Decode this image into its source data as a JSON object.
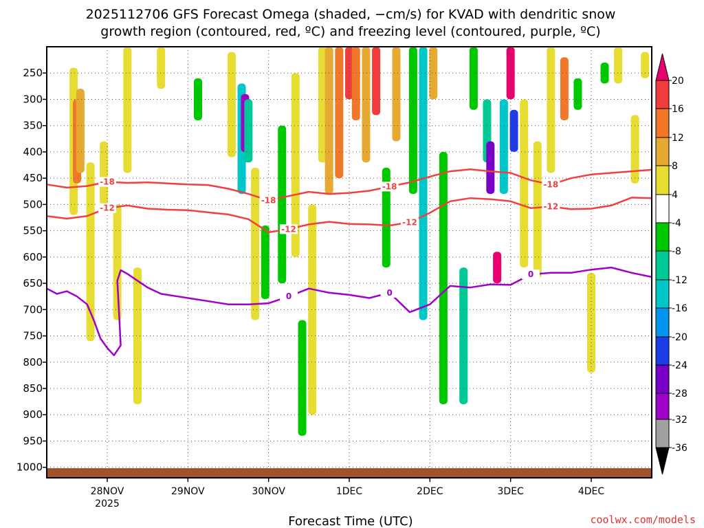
{
  "chart_data": {
    "type": "heatmap",
    "title_lines": [
      "2025112706 GFS Forecast Omega (shaded, −cm/s) for KVAD with dendritic snow",
      "growth region (contoured, red, ºC) and freezing level (contoured, purple, ºC)"
    ],
    "xlabel": "Forecast Time (UTC)",
    "credit": "coolwx.com/models",
    "x_ticks": [
      {
        "label": "28NOV",
        "sub": "2025",
        "hours": 24
      },
      {
        "label": "29NOV",
        "sub": "",
        "hours": 48
      },
      {
        "label": "30NOV",
        "sub": "",
        "hours": 72
      },
      {
        "label": "1DEC",
        "sub": "",
        "hours": 96
      },
      {
        "label": "2DEC",
        "sub": "",
        "hours": 120
      },
      {
        "label": "3DEC",
        "sub": "",
        "hours": 144
      },
      {
        "label": "4DEC",
        "sub": "",
        "hours": 168
      }
    ],
    "xlim_hours": [
      6,
      186
    ],
    "y_ticks": [
      {
        "label": "250",
        "p": 250
      },
      {
        "label": "300",
        "p": 300
      },
      {
        "label": "350",
        "p": 350
      },
      {
        "label": "400",
        "p": 400
      },
      {
        "label": "450",
        "p": 450
      },
      {
        "label": "500",
        "p": 500
      },
      {
        "label": "550",
        "p": 550
      },
      {
        "label": "600",
        "p": 600
      },
      {
        "label": "650",
        "p": 650
      },
      {
        "label": "700",
        "p": 700
      },
      {
        "label": "750",
        "p": 750
      },
      {
        "label": "800",
        "p": 800
      },
      {
        "label": "850",
        "p": 850
      },
      {
        "label": "900",
        "p": 900
      },
      {
        "label": "950",
        "p": 950
      },
      {
        "label": "1000",
        "p": 1000
      }
    ],
    "ylim_hPa": [
      200,
      1020
    ],
    "colorbar": {
      "labels": [
        "20",
        "16",
        "12",
        "8",
        "4",
        "-4",
        "-8",
        "-12",
        "-16",
        "-20",
        "-24",
        "-28",
        "-32",
        "-36"
      ],
      "colors": [
        "#e8006f",
        "#f03c3c",
        "#f07828",
        "#e6aa32",
        "#e6dc32",
        "#ffffff",
        "#00c800",
        "#00c896",
        "#00c8c8",
        "#0096f0",
        "#1e3ce6",
        "#7800c8",
        "#a000c8",
        "#a0a0a0",
        "#000000"
      ]
    },
    "colors": {
      "dgz_contour": "#f04040",
      "freezing_contour": "#a000c8",
      "terrain": "#a0522d"
    },
    "contour_labels": {
      "dgz_upper": "-18",
      "dgz_lower": "-12",
      "freezing": "0"
    },
    "series": [
      {
        "name": "-18C isotherm",
        "hours": [
          6,
          12,
          18,
          24,
          30,
          36,
          42,
          48,
          54,
          60,
          66,
          72,
          78,
          84,
          90,
          96,
          102,
          108,
          114,
          120,
          126,
          132,
          138,
          144,
          150,
          156,
          162,
          168,
          174,
          180,
          186
        ],
        "pressure": [
          462,
          468,
          465,
          457,
          459,
          458,
          460,
          462,
          463,
          470,
          480,
          492,
          484,
          476,
          480,
          478,
          474,
          466,
          458,
          447,
          437,
          433,
          437,
          440,
          454,
          462,
          450,
          443,
          440,
          437,
          434
        ]
      },
      {
        "name": "-12C isotherm",
        "hours": [
          6,
          12,
          18,
          24,
          30,
          36,
          42,
          48,
          54,
          60,
          66,
          72,
          78,
          84,
          90,
          96,
          102,
          108,
          114,
          120,
          126,
          132,
          138,
          144,
          150,
          156,
          162,
          168,
          174,
          180,
          186
        ],
        "pressure": [
          522,
          527,
          522,
          507,
          502,
          508,
          510,
          511,
          515,
          519,
          528,
          553,
          547,
          538,
          533,
          537,
          538,
          540,
          534,
          516,
          494,
          488,
          490,
          494,
          507,
          504,
          509,
          508,
          502,
          487,
          488
        ]
      },
      {
        "name": "0C freezing level",
        "hours": [
          6,
          9,
          12,
          15,
          18,
          20,
          22,
          24,
          26,
          28,
          27,
          28,
          30,
          33,
          36,
          40,
          45,
          50,
          55,
          60,
          66,
          72,
          78,
          84,
          90,
          96,
          102,
          108,
          114,
          120,
          126,
          132,
          138,
          144,
          150,
          156,
          162,
          168,
          174,
          180,
          186
        ],
        "pressure": [
          660,
          670,
          665,
          675,
          690,
          720,
          755,
          773,
          787,
          768,
          645,
          625,
          632,
          645,
          658,
          670,
          675,
          680,
          685,
          690,
          690,
          688,
          675,
          660,
          668,
          672,
          678,
          668,
          705,
          690,
          655,
          658,
          652,
          653,
          633,
          630,
          630,
          624,
          620,
          630,
          638
        ]
      }
    ],
    "omega_cells": [
      {
        "h": 14,
        "p1": 240,
        "p2": 520,
        "v": 6
      },
      {
        "h": 15,
        "p1": 300,
        "p2": 460,
        "v": 12
      },
      {
        "h": 16,
        "p1": 280,
        "p2": 440,
        "v": 8
      },
      {
        "h": 19,
        "p1": 420,
        "p2": 760,
        "v": 5
      },
      {
        "h": 23,
        "p1": 380,
        "p2": 500,
        "v": 6
      },
      {
        "h": 27,
        "p1": 500,
        "p2": 720,
        "v": 5
      },
      {
        "h": 30,
        "p1": 200,
        "p2": 440,
        "v": 5
      },
      {
        "h": 33,
        "p1": 620,
        "p2": 880,
        "v": 5
      },
      {
        "h": 40,
        "p1": 200,
        "p2": 280,
        "v": 5
      },
      {
        "h": 51,
        "p1": 260,
        "p2": 340,
        "v": -6
      },
      {
        "h": 61,
        "p1": 210,
        "p2": 410,
        "v": 5
      },
      {
        "h": 64,
        "p1": 270,
        "p2": 480,
        "v": -12
      },
      {
        "h": 65,
        "p1": 290,
        "p2": 400,
        "v": -28
      },
      {
        "h": 66,
        "p1": 300,
        "p2": 420,
        "v": -10
      },
      {
        "h": 68,
        "p1": 430,
        "p2": 720,
        "v": 5
      },
      {
        "h": 71,
        "p1": 540,
        "p2": 680,
        "v": -6
      },
      {
        "h": 76,
        "p1": 350,
        "p2": 650,
        "v": -6
      },
      {
        "h": 80,
        "p1": 250,
        "p2": 600,
        "v": 5
      },
      {
        "h": 82,
        "p1": 720,
        "p2": 940,
        "v": -6
      },
      {
        "h": 85,
        "p1": 500,
        "p2": 900,
        "v": 5
      },
      {
        "h": 88,
        "p1": 200,
        "p2": 420,
        "v": 6
      },
      {
        "h": 90,
        "p1": 200,
        "p2": 480,
        "v": 10
      },
      {
        "h": 93,
        "p1": 200,
        "p2": 450,
        "v": 14
      },
      {
        "h": 96,
        "p1": 200,
        "p2": 300,
        "v": 18
      },
      {
        "h": 98,
        "p1": 200,
        "p2": 340,
        "v": 12
      },
      {
        "h": 101,
        "p1": 200,
        "p2": 420,
        "v": 10
      },
      {
        "h": 104,
        "p1": 200,
        "p2": 330,
        "v": 16
      },
      {
        "h": 107,
        "p1": 430,
        "p2": 620,
        "v": -6
      },
      {
        "h": 110,
        "p1": 200,
        "p2": 380,
        "v": 8
      },
      {
        "h": 115,
        "p1": 200,
        "p2": 480,
        "v": -6
      },
      {
        "h": 118,
        "p1": 200,
        "p2": 720,
        "v": -12
      },
      {
        "h": 121,
        "p1": 200,
        "p2": 300,
        "v": 8
      },
      {
        "h": 124,
        "p1": 400,
        "p2": 880,
        "v": -6
      },
      {
        "h": 130,
        "p1": 620,
        "p2": 880,
        "v": -10
      },
      {
        "h": 133,
        "p1": 200,
        "p2": 320,
        "v": -6
      },
      {
        "h": 137,
        "p1": 300,
        "p2": 420,
        "v": -8
      },
      {
        "h": 138,
        "p1": 380,
        "p2": 480,
        "v": -24
      },
      {
        "h": 140,
        "p1": 590,
        "p2": 650,
        "v": 20
      },
      {
        "h": 142,
        "p1": 300,
        "p2": 480,
        "v": -14
      },
      {
        "h": 144,
        "p1": 200,
        "p2": 300,
        "v": 20
      },
      {
        "h": 145,
        "p1": 320,
        "p2": 400,
        "v": -22
      },
      {
        "h": 148,
        "p1": 300,
        "p2": 620,
        "v": 6
      },
      {
        "h": 152,
        "p1": 380,
        "p2": 640,
        "v": 5
      },
      {
        "h": 156,
        "p1": 200,
        "p2": 440,
        "v": 5
      },
      {
        "h": 160,
        "p1": 220,
        "p2": 340,
        "v": 12
      },
      {
        "h": 164,
        "p1": 260,
        "p2": 320,
        "v": -6
      },
      {
        "h": 168,
        "p1": 630,
        "p2": 820,
        "v": 5
      },
      {
        "h": 172,
        "p1": 230,
        "p2": 270,
        "v": -6
      },
      {
        "h": 176,
        "p1": 200,
        "p2": 270,
        "v": 5
      },
      {
        "h": 181,
        "p1": 330,
        "p2": 460,
        "v": 5
      },
      {
        "h": 184,
        "p1": 210,
        "p2": 260,
        "v": 5
      }
    ]
  }
}
